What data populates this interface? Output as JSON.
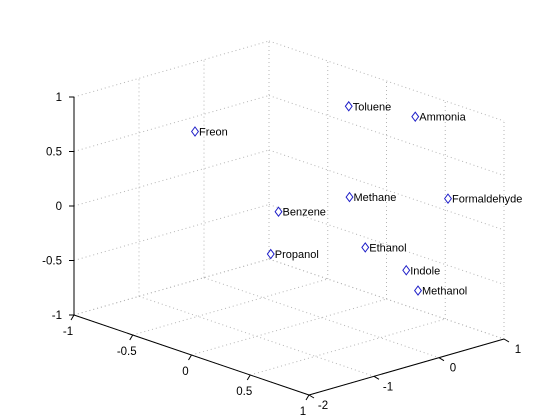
{
  "chart_data": {
    "type": "scatter",
    "dimensions": 3,
    "marker": "diamond",
    "marker_color": "#2020c8",
    "grid": true,
    "box": false,
    "xlim": [
      -1,
      1
    ],
    "ylim": [
      -2,
      1
    ],
    "zlim": [
      -1,
      1
    ],
    "x_ticks": [
      "-1",
      "-0.5",
      "0",
      "0.5",
      "1"
    ],
    "y_ticks": [
      "-2",
      "-1",
      "0",
      "1"
    ],
    "z_ticks": [
      "-1",
      "-0.5",
      "0",
      "0.5",
      "1"
    ],
    "title": "",
    "xlabel": "",
    "ylabel": "",
    "zlabel": "",
    "points": [
      {
        "label": "Freon",
        "x": -0.8,
        "y": -0.5,
        "z": 0.5
      },
      {
        "label": "Toluene",
        "x": -0.1,
        "y": 0.6,
        "z": 0.8
      },
      {
        "label": "Ammonia",
        "x": 0.3,
        "y": 0.9,
        "z": 0.8
      },
      {
        "label": "Methane",
        "x": 0.1,
        "y": 0.25,
        "z": 0.1
      },
      {
        "label": "Formaldehyde",
        "x": 0.8,
        "y": 0.5,
        "z": 0.3
      },
      {
        "label": "Benzene",
        "x": -0.2,
        "y": -0.3,
        "z": -0.05
      },
      {
        "label": "Propanol",
        "x": -0.1,
        "y": -0.6,
        "z": -0.35
      },
      {
        "label": "Ethanol",
        "x": 0.4,
        "y": -0.05,
        "z": -0.2
      },
      {
        "label": "Indole",
        "x": 0.5,
        "y": 0.4,
        "z": -0.45
      },
      {
        "label": "Methanol",
        "x": 0.6,
        "y": 0.4,
        "z": -0.6
      }
    ]
  }
}
